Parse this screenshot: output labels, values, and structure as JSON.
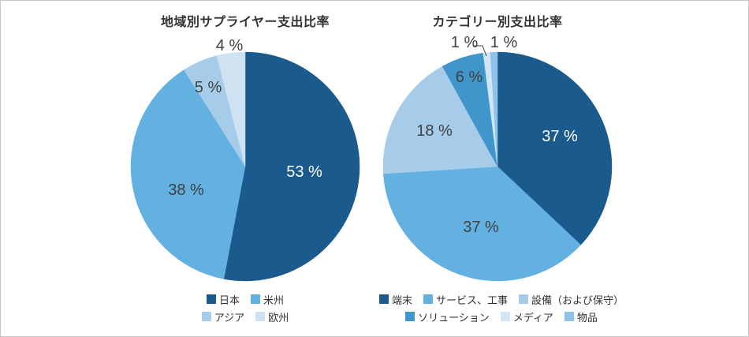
{
  "page": {
    "background_color": "#ffffff",
    "border_color": "#c6c6c6"
  },
  "chart_data": [
    {
      "type": "pie",
      "title": "地域別サプライヤー支出比率",
      "value_suffix": " %",
      "legend_position": "bottom",
      "slices": [
        {
          "label": "日本",
          "value": 53,
          "color": "#1b5a8c"
        },
        {
          "label": "米州",
          "value": 38,
          "color": "#63b1e0"
        },
        {
          "label": "アジア",
          "value": 5,
          "color": "#a6cce9"
        },
        {
          "label": "欧州",
          "value": 4,
          "color": "#cee2f1"
        }
      ]
    },
    {
      "type": "pie",
      "title": "カテゴリー別支出比率",
      "value_suffix": " %",
      "legend_position": "bottom",
      "slices": [
        {
          "label": "端末",
          "value": 37,
          "color": "#1b5a8c"
        },
        {
          "label": "サービス、工事",
          "value": 37,
          "color": "#63b1e0"
        },
        {
          "label": "設備（および保守）",
          "value": 18,
          "color": "#a6cce9"
        },
        {
          "label": "ソリューション",
          "value": 6,
          "color": "#4095cb"
        },
        {
          "label": "メディア",
          "value": 1,
          "color": "#d2e5f4"
        },
        {
          "label": "物品",
          "value": 1,
          "color": "#8fc3e9"
        }
      ]
    }
  ]
}
